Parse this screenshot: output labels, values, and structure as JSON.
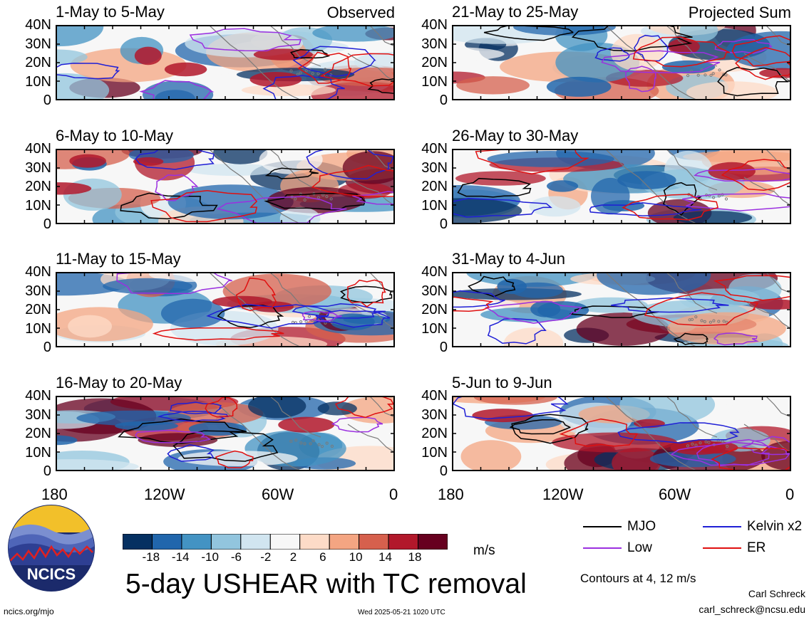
{
  "panels": [
    {
      "title": "1-May to 5-May",
      "corner": "Observed",
      "seed": 1
    },
    {
      "title": "21-May to 25-May",
      "corner": "Projected Sum",
      "seed": 2
    },
    {
      "title": "6-May to 10-May",
      "corner": "",
      "seed": 3
    },
    {
      "title": "26-May to 30-May",
      "corner": "",
      "seed": 4
    },
    {
      "title": "11-May to 15-May",
      "corner": "",
      "seed": 5
    },
    {
      "title": "31-May to 4-Jun",
      "corner": "",
      "seed": 6
    },
    {
      "title": "16-May to 20-May",
      "corner": "",
      "seed": 7
    },
    {
      "title": "5-Jun to 9-Jun",
      "corner": "",
      "seed": 8
    }
  ],
  "y_ticks": [
    "40N",
    "30N",
    "20N",
    "10N",
    "0"
  ],
  "x_ticks": [
    "180",
    "120W",
    "60W",
    "0"
  ],
  "colorbar": {
    "colors": [
      "#053061",
      "#2166ac",
      "#4393c3",
      "#92c5de",
      "#d1e5f0",
      "#f7f7f7",
      "#fddbc7",
      "#f4a582",
      "#d6604d",
      "#b2182b",
      "#67001f"
    ],
    "labels": [
      "-18",
      "-14",
      "-10",
      "-6",
      "-2",
      "2",
      "6",
      "10",
      "14",
      "18"
    ],
    "unit": "m/s"
  },
  "legend": [
    {
      "label": "MJO",
      "color": "#000000"
    },
    {
      "label": "Kelvin x2",
      "color": "#1f1fd6"
    },
    {
      "label": "Low",
      "color": "#9b30e0"
    },
    {
      "label": "ER",
      "color": "#e01010"
    }
  ],
  "contours_note": "Contours at 4, 12 m/s",
  "main_title": "5-day USHEAR with TC removal",
  "logo_text": "NCICS",
  "footer": {
    "left": "ncics.org/mjo",
    "center": "Wed 2025-05-21 1020 UTC",
    "author": "Carl Schreck",
    "email": "carl_schreck@ncsu.edu"
  }
}
